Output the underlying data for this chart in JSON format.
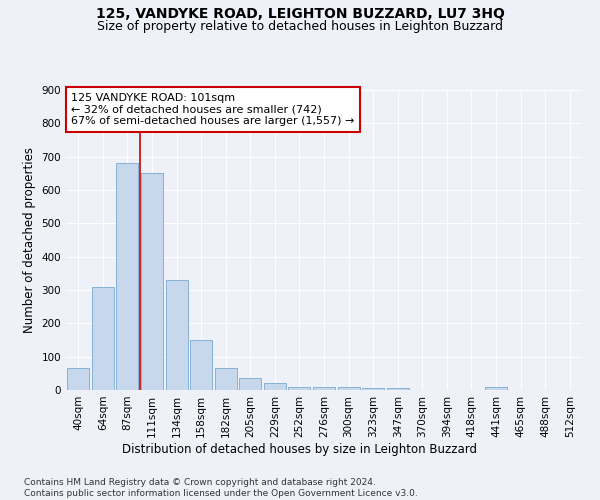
{
  "title": "125, VANDYKE ROAD, LEIGHTON BUZZARD, LU7 3HQ",
  "subtitle": "Size of property relative to detached houses in Leighton Buzzard",
  "xlabel": "Distribution of detached houses by size in Leighton Buzzard",
  "ylabel": "Number of detached properties",
  "bar_color": "#c8d8ec",
  "bar_edge_color": "#7aaad0",
  "bin_labels": [
    "40sqm",
    "64sqm",
    "87sqm",
    "111sqm",
    "134sqm",
    "158sqm",
    "182sqm",
    "205sqm",
    "229sqm",
    "252sqm",
    "276sqm",
    "300sqm",
    "323sqm",
    "347sqm",
    "370sqm",
    "394sqm",
    "418sqm",
    "441sqm",
    "465sqm",
    "488sqm",
    "512sqm"
  ],
  "bar_heights": [
    65,
    310,
    680,
    650,
    330,
    150,
    65,
    35,
    20,
    10,
    10,
    10,
    5,
    5,
    0,
    0,
    0,
    10,
    0,
    0,
    0
  ],
  "vline_bin_index": 2.5,
  "annotation_line1": "125 VANDYKE ROAD: 101sqm",
  "annotation_line2": "← 32% of detached houses are smaller (742)",
  "annotation_line3": "67% of semi-detached houses are larger (1,557) →",
  "annotation_box_color": "#ffffff",
  "annotation_box_edge_color": "#cc0000",
  "vline_color": "#cc0000",
  "ylim": [
    0,
    900
  ],
  "yticks": [
    0,
    100,
    200,
    300,
    400,
    500,
    600,
    700,
    800,
    900
  ],
  "footer_text": "Contains HM Land Registry data © Crown copyright and database right 2024.\nContains public sector information licensed under the Open Government Licence v3.0.",
  "bg_color": "#eef2f8",
  "grid_color": "#ffffff",
  "title_fontsize": 10,
  "subtitle_fontsize": 9,
  "axis_label_fontsize": 8.5,
  "tick_fontsize": 7.5,
  "annotation_fontsize": 8,
  "footer_fontsize": 6.5
}
